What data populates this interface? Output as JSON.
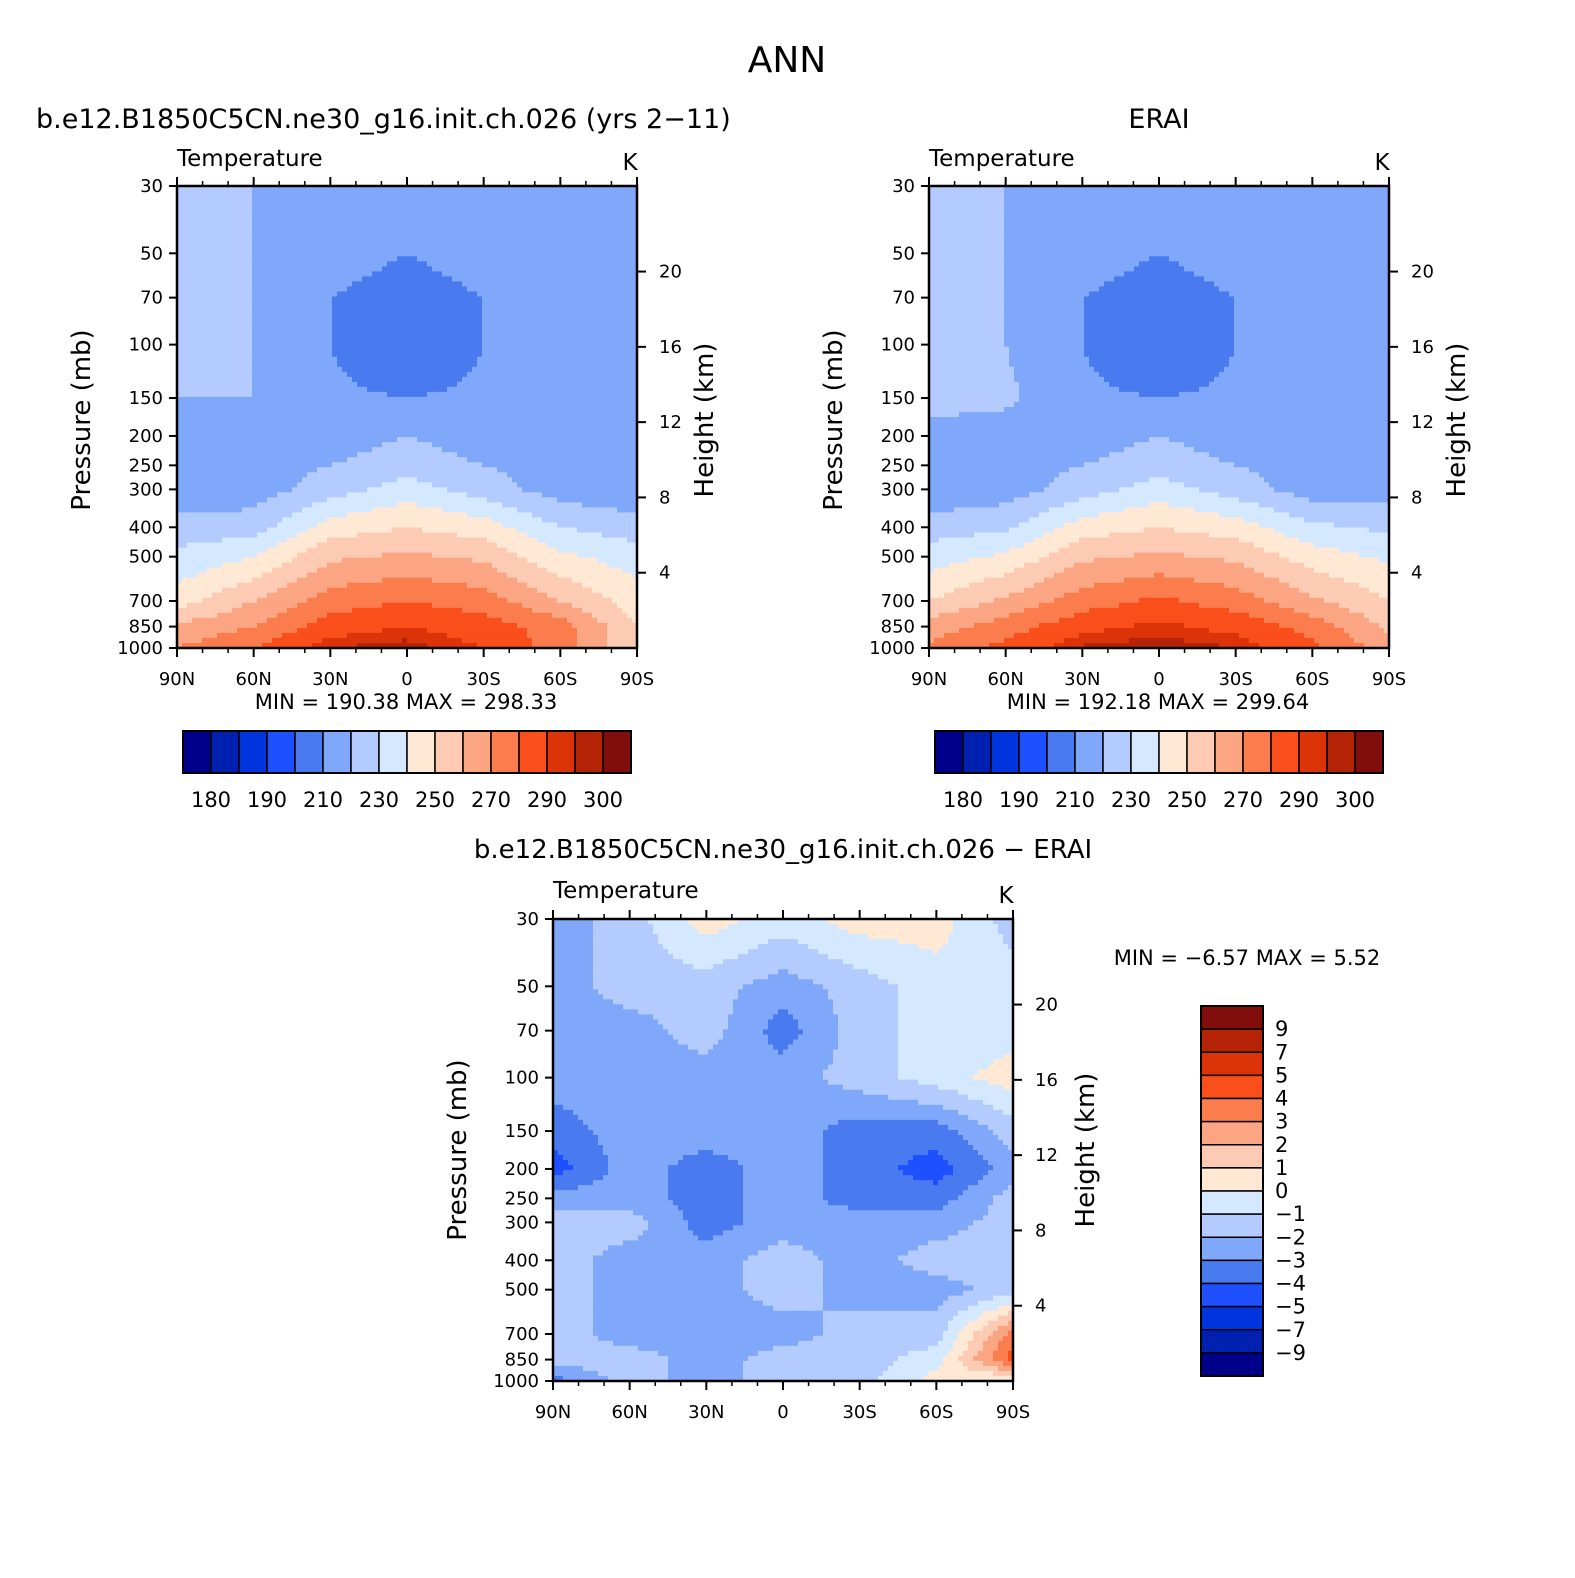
{
  "figure": {
    "title": "ANN",
    "diff_title": "b.e12.B1850C5CN.ne30_g16.init.ch.026 − ERAI"
  },
  "palettes": {
    "abs": [
      "#00008b",
      "#0020b0",
      "#0035de",
      "#1f50ff",
      "#4a7af0",
      "#80a8fa",
      "#b3cbff",
      "#d4e8ff",
      "#ffe8d4",
      "#fdcbb3",
      "#fba583",
      "#fb7d4e",
      "#fa4f1a",
      "#dd3309",
      "#b52307",
      "#820d0d"
    ],
    "diff": [
      "#00008b",
      "#0020b0",
      "#0035de",
      "#1f50ff",
      "#4a7af0",
      "#80a8fa",
      "#b3cbff",
      "#d4e8ff",
      "#ffe8d4",
      "#fdcbb3",
      "#fba583",
      "#fb7d4e",
      "#fa4f1a",
      "#dd3309",
      "#b52307",
      "#820d0d"
    ]
  },
  "panels": {
    "model": {
      "header": "b.e12.B1850C5CN.ne30_g16.init.ch.026 (yrs 2−11)",
      "left_label": "Temperature",
      "units": "K",
      "stats": "MIN =  190.38   MAX =  298.33"
    },
    "obs": {
      "header": "ERAI",
      "left_label": "Temperature",
      "units": "K",
      "stats": "MIN =  192.18   MAX =  299.64"
    },
    "diff": {
      "left_label": "Temperature",
      "units": "K",
      "stats": "MIN =   −6.57   MAX =    5.52"
    }
  },
  "axes": {
    "ylabel": "Pressure (mb)",
    "y2label": "Height (km)",
    "pressure_ticks": [
      "30",
      "50",
      "70",
      "100",
      "150",
      "200",
      "250",
      "300",
      "400",
      "500",
      "700",
      "850",
      "1000"
    ],
    "height_ticks": [
      "20",
      "16",
      "12",
      "8",
      "4"
    ],
    "lat_ticks": [
      "90N",
      "60N",
      "30N",
      "0",
      "30S",
      "60S",
      "90S"
    ]
  },
  "colorbars": {
    "abs_labels": [
      "180",
      "190",
      "210",
      "230",
      "250",
      "270",
      "290",
      "300"
    ],
    "diff_labels": [
      "9",
      "7",
      "5",
      "4",
      "3",
      "2",
      "1",
      "0",
      "−1",
      "−2",
      "−3",
      "−4",
      "−5",
      "−7",
      "−9"
    ]
  },
  "chart_data": [
    {
      "type": "heatmap",
      "name": "model",
      "title": "b.e12.B1850C5CN.ne30_g16.init.ch.026 (yrs 2−11)",
      "xlabel": "",
      "ylabel": "Pressure (mb)",
      "x": [
        90,
        60,
        30,
        0,
        -30,
        -60,
        -90
      ],
      "y": [
        30,
        50,
        70,
        100,
        150,
        200,
        250,
        300,
        400,
        500,
        700,
        850,
        1000
      ],
      "levels": [
        180,
        185,
        190,
        200,
        210,
        220,
        230,
        240,
        250,
        260,
        270,
        280,
        290,
        295,
        300
      ],
      "z": [
        [
          220,
          220,
          220,
          220,
          220,
          220,
          215
        ],
        [
          220,
          220,
          215,
          210,
          215,
          220,
          215
        ],
        [
          220,
          220,
          210,
          205,
          210,
          220,
          215
        ],
        [
          220,
          220,
          210,
          200,
          210,
          220,
          215
        ],
        [
          220,
          220,
          212,
          210,
          212,
          220,
          215
        ],
        [
          215,
          215,
          215,
          220,
          215,
          215,
          212
        ],
        [
          215,
          215,
          220,
          225,
          220,
          215,
          212
        ],
        [
          210,
          215,
          225,
          235,
          225,
          215,
          212
        ],
        [
          225,
          225,
          245,
          250,
          245,
          230,
          225
        ],
        [
          232,
          240,
          258,
          262,
          258,
          242,
          235
        ],
        [
          245,
          260,
          275,
          280,
          275,
          260,
          245
        ],
        [
          262,
          270,
          285,
          290,
          285,
          275,
          250
        ],
        [
          270,
          280,
          295,
          298,
          290,
          275,
          250
        ]
      ]
    },
    {
      "type": "heatmap",
      "name": "obs",
      "title": "ERAI",
      "xlabel": "",
      "ylabel": "Pressure (mb)",
      "x": [
        90,
        60,
        30,
        0,
        -30,
        -60,
        -90
      ],
      "y": [
        30,
        50,
        70,
        100,
        150,
        200,
        250,
        300,
        400,
        500,
        700,
        850,
        1000
      ],
      "levels": [
        180,
        185,
        190,
        200,
        210,
        220,
        230,
        240,
        250,
        260,
        270,
        280,
        290,
        295,
        300
      ],
      "z": [
        [
          220,
          220,
          220,
          220,
          220,
          220,
          215
        ],
        [
          220,
          220,
          215,
          210,
          215,
          220,
          215
        ],
        [
          220,
          220,
          210,
          205,
          210,
          220,
          215
        ],
        [
          222,
          220,
          210,
          200,
          210,
          220,
          215
        ],
        [
          225,
          222,
          212,
          210,
          212,
          220,
          217
        ],
        [
          215,
          215,
          215,
          220,
          215,
          215,
          215
        ],
        [
          215,
          215,
          220,
          225,
          220,
          215,
          215
        ],
        [
          212,
          215,
          225,
          235,
          225,
          215,
          215
        ],
        [
          225,
          228,
          245,
          250,
          245,
          232,
          228
        ],
        [
          235,
          242,
          258,
          262,
          258,
          245,
          238
        ],
        [
          250,
          262,
          275,
          282,
          275,
          262,
          250
        ],
        [
          265,
          275,
          287,
          292,
          287,
          276,
          258
        ],
        [
          272,
          283,
          296,
          299,
          295,
          282,
          265
        ]
      ]
    },
    {
      "type": "heatmap",
      "name": "difference",
      "title": "b.e12.B1850C5CN.ne30_g16.init.ch.026 − ERAI",
      "xlabel": "",
      "ylabel": "Pressure (mb)",
      "x": [
        90,
        60,
        30,
        0,
        -30,
        -60,
        -90
      ],
      "y": [
        30,
        50,
        70,
        100,
        150,
        200,
        250,
        300,
        400,
        500,
        700,
        850,
        1000
      ],
      "levels": [
        -9,
        -7,
        -5,
        -4,
        -3,
        -2,
        -1,
        0,
        1,
        2,
        3,
        4,
        5,
        7,
        9
      ],
      "z": [
        [
          -2.5,
          -1.5,
          0.5,
          -0.5,
          0.5,
          0.5,
          -1.5
        ],
        [
          -2.5,
          -1.5,
          -1.5,
          -2.5,
          -1.5,
          -0.5,
          -0.5
        ],
        [
          -2.5,
          -2.5,
          -1.5,
          -3.5,
          -1.5,
          -0.5,
          -0.5
        ],
        [
          -2.5,
          -2.5,
          -2.5,
          -2.5,
          -1.5,
          -0.5,
          0.5
        ],
        [
          -3.5,
          -2.5,
          -2.5,
          -2.5,
          -3.5,
          -3.5,
          -1.5
        ],
        [
          -4.5,
          -2.5,
          -3.5,
          -2.5,
          -3.5,
          -4.5,
          -2.5
        ],
        [
          -2.5,
          -2.5,
          -3.5,
          -2.5,
          -3.5,
          -3.5,
          -1.5
        ],
        [
          -1.5,
          -1.5,
          -3.5,
          -2.5,
          -2.5,
          -2.5,
          -1.5
        ],
        [
          -1.5,
          -2.5,
          -2.5,
          -1.5,
          -2.5,
          -1.5,
          -1.5
        ],
        [
          -1.5,
          -2.5,
          -2.5,
          -1.5,
          -2.5,
          -2.5,
          -1.5
        ],
        [
          -1.5,
          -2.5,
          -2.5,
          -2.5,
          -1.5,
          -1.5,
          3.5
        ],
        [
          -1.5,
          -1.5,
          -2.5,
          -1.5,
          -1.5,
          -0.5,
          4.5
        ],
        [
          -3.5,
          -1.5,
          -2.5,
          -1.5,
          -1.5,
          0.5,
          -0.5
        ]
      ]
    }
  ]
}
